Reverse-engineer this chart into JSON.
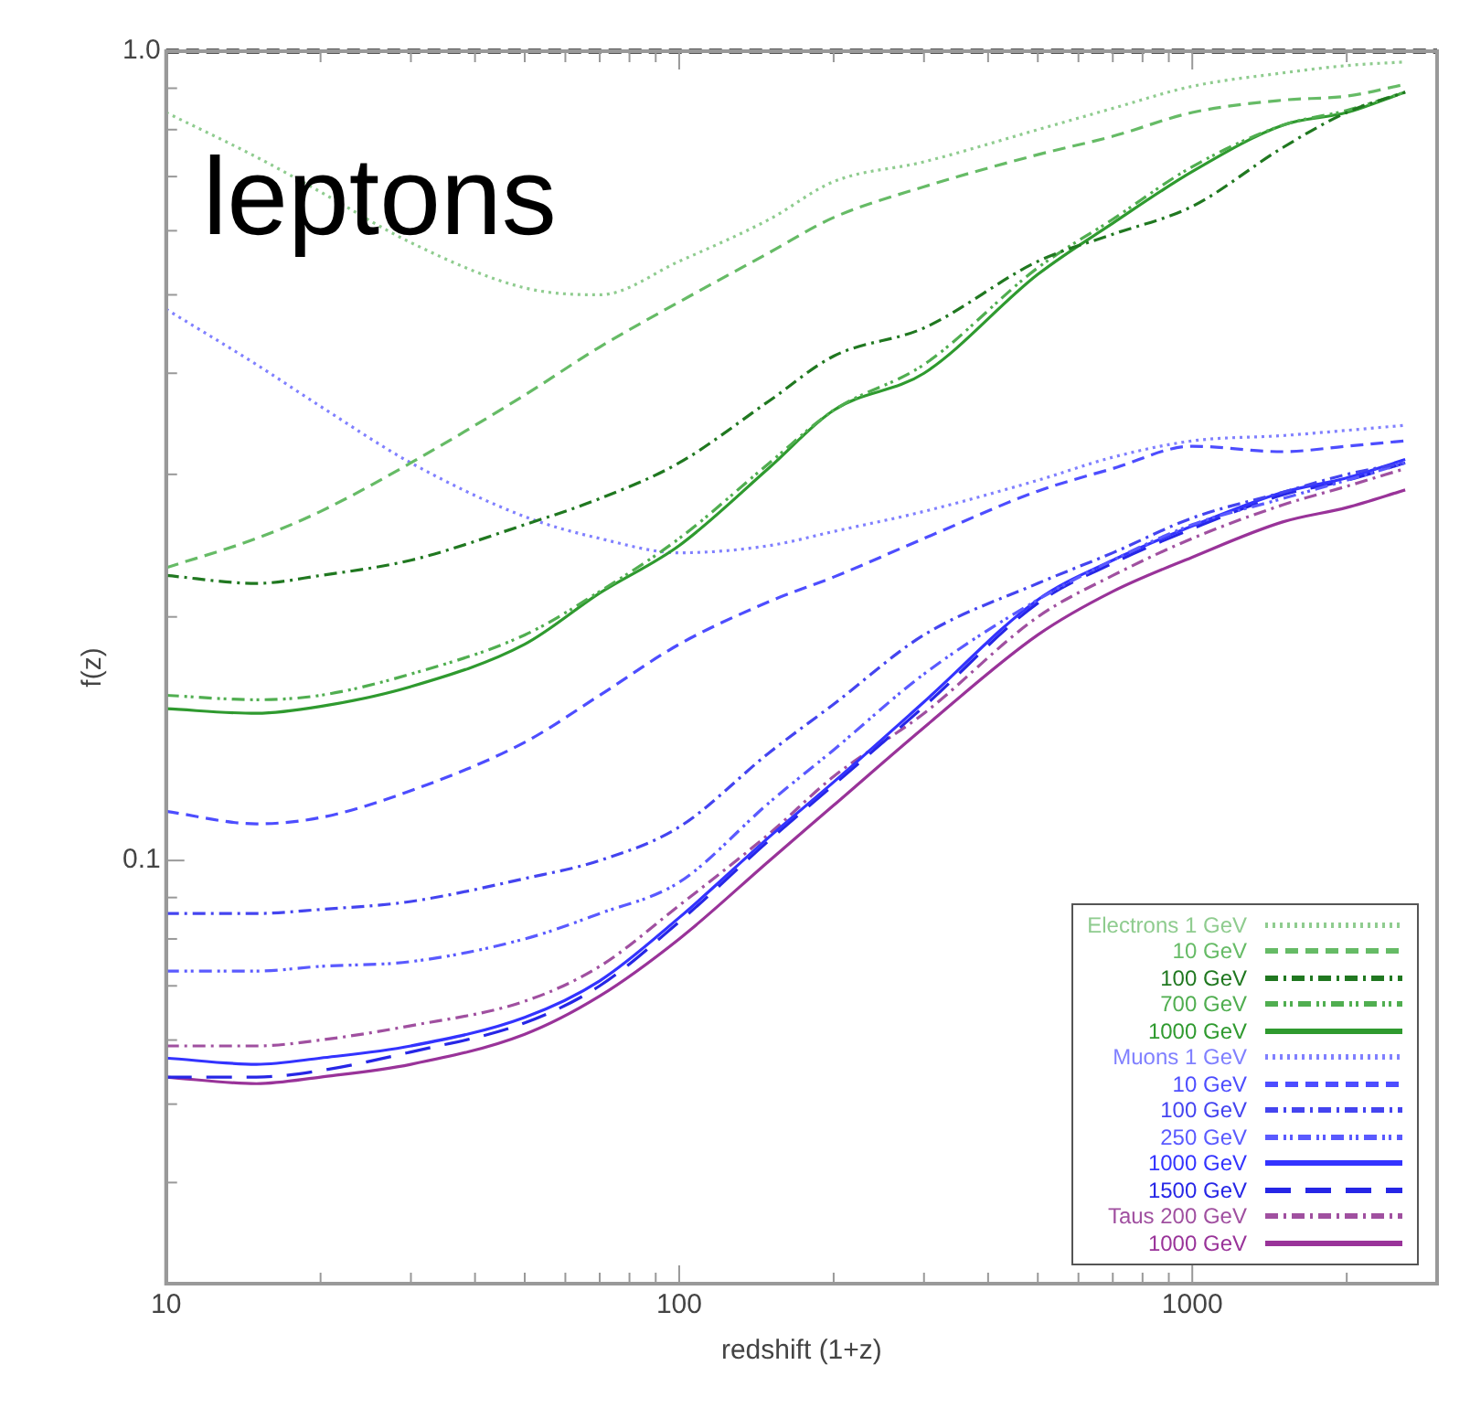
{
  "chart_data": {
    "type": "line",
    "title": "leptons",
    "xlabel": "redshift (1+z)",
    "ylabel": "f(z)",
    "log": "xy",
    "legend": "bottom right",
    "x": [
      10,
      15,
      20,
      30,
      50,
      70,
      100,
      150,
      200,
      300,
      500,
      700,
      1000,
      1500,
      2000,
      2600
    ],
    "xlim": [
      10,
      3000
    ],
    "xticks": [
      10,
      {
        "value": 20,
        "label": null
      },
      {
        "value": 30,
        "label": null
      },
      {
        "value": 40,
        "label": null
      },
      {
        "value": 50,
        "label": null
      },
      {
        "value": 60,
        "label": null
      },
      {
        "value": 70,
        "label": null
      },
      {
        "value": 80,
        "label": null
      },
      {
        "value": 90,
        "label": null
      },
      100,
      {
        "value": 200,
        "label": null
      },
      {
        "value": 300,
        "label": null
      },
      {
        "value": 400,
        "label": null
      },
      {
        "value": 500,
        "label": null
      },
      {
        "value": 600,
        "label": null
      },
      {
        "value": 700,
        "label": null
      },
      {
        "value": 800,
        "label": null
      },
      {
        "value": 900,
        "label": null
      },
      1000,
      {
        "value": 2000,
        "label": null
      },
      {
        "value": 3000,
        "label": null
      }
    ],
    "ylim": [
      0.03,
      1.0
    ],
    "yticks": [
      {
        "value": 0.03,
        "label": null
      },
      {
        "value": 0.04,
        "label": null
      },
      {
        "value": 0.05,
        "label": null
      },
      {
        "value": 0.06,
        "label": null
      },
      {
        "value": 0.07,
        "label": null
      },
      {
        "value": 0.08,
        "label": null
      },
      {
        "value": 0.09,
        "label": null
      },
      0.1,
      {
        "value": 0.2,
        "label": null
      },
      {
        "value": 0.3,
        "label": null
      },
      {
        "value": 0.4,
        "label": null
      },
      {
        "value": 0.5,
        "label": null
      },
      {
        "value": 0.6,
        "label": null
      },
      {
        "value": 0.7,
        "label": null
      },
      {
        "value": 0.8,
        "label": null
      },
      {
        "value": 0.9,
        "label": null
      },
      {
        "value": 1,
        "label": "1.0"
      }
    ],
    "ref_lines": [
      {
        "axis": "y",
        "value": 1,
        "color": "#555555",
        "line_style": "dashed"
      }
    ],
    "series": [
      {
        "name": "Electrons 1 GeV",
        "color": "#8fcc8f",
        "line_style": "dotted",
        "values": [
          0.84,
          0.74,
          0.67,
          0.58,
          0.51,
          0.5,
          0.55,
          0.62,
          0.69,
          0.73,
          0.8,
          0.85,
          0.905,
          0.94,
          0.96,
          0.97
        ]
      },
      {
        "name": "10 GeV",
        "color": "#66bb66",
        "line_style": "dashed",
        "values": [
          0.23,
          0.25,
          0.27,
          0.31,
          0.376,
          0.431,
          0.49,
          0.564,
          0.623,
          0.68,
          0.745,
          0.785,
          0.84,
          0.87,
          0.88,
          0.91
        ]
      },
      {
        "name": "100 GeV",
        "color": "#207820",
        "line_style": "dashdot",
        "values": [
          0.225,
          0.22,
          0.225,
          0.235,
          0.26,
          0.28,
          0.31,
          0.37,
          0.42,
          0.455,
          0.55,
          0.594,
          0.643,
          0.76,
          0.84,
          0.89
        ]
      },
      {
        "name": "700 GeV",
        "color": "#50ae50",
        "line_style": "dashdotdot",
        "values": [
          0.16,
          0.158,
          0.16,
          0.17,
          0.19,
          0.215,
          0.25,
          0.31,
          0.36,
          0.41,
          0.54,
          0.62,
          0.72,
          0.81,
          0.845,
          0.89
        ]
      },
      {
        "name": "1000 GeV",
        "color": "#2f9a2f",
        "line_style": "solid",
        "values": [
          0.154,
          0.152,
          0.155,
          0.164,
          0.185,
          0.214,
          0.245,
          0.306,
          0.36,
          0.4,
          0.53,
          0.613,
          0.71,
          0.81,
          0.84,
          0.89
        ]
      },
      {
        "name": "Muons 1 GeV",
        "color": "#8080ff",
        "line_style": "dotted",
        "values": [
          0.48,
          0.41,
          0.364,
          0.31,
          0.266,
          0.25,
          0.24,
          0.245,
          0.255,
          0.27,
          0.295,
          0.315,
          0.33,
          0.335,
          0.34,
          0.345
        ]
      },
      {
        "name": "10 GeV",
        "color": "#4d4dff",
        "line_style": "dashed",
        "values": [
          0.115,
          0.111,
          0.113,
          0.122,
          0.14,
          0.16,
          0.185,
          0.209,
          0.224,
          0.25,
          0.286,
          0.305,
          0.325,
          0.32,
          0.325,
          0.33
        ]
      },
      {
        "name": "100 GeV",
        "color": "#4444f0",
        "line_style": "dashdot",
        "values": [
          0.086,
          0.086,
          0.087,
          0.089,
          0.095,
          0.1,
          0.11,
          0.136,
          0.156,
          0.19,
          0.22,
          0.24,
          0.265,
          0.285,
          0.3,
          0.31
        ]
      },
      {
        "name": "250 GeV",
        "color": "#5a5aff",
        "line_style": "dashdotdot",
        "values": [
          0.073,
          0.073,
          0.074,
          0.075,
          0.08,
          0.086,
          0.094,
          0.118,
          0.137,
          0.17,
          0.21,
          0.235,
          0.26,
          0.28,
          0.295,
          0.31
        ]
      },
      {
        "name": "1000 GeV",
        "color": "#3333ff",
        "line_style": "solid",
        "values": [
          0.057,
          0.056,
          0.057,
          0.059,
          0.064,
          0.071,
          0.085,
          0.107,
          0.125,
          0.157,
          0.21,
          0.235,
          0.259,
          0.285,
          0.297,
          0.313
        ]
      },
      {
        "name": "1500 GeV",
        "color": "#2626e6",
        "line_style": "longdash",
        "values": [
          0.054,
          0.054,
          0.055,
          0.058,
          0.063,
          0.07,
          0.084,
          0.106,
          0.124,
          0.155,
          0.208,
          0.233,
          0.257,
          0.283,
          0.295,
          0.31
        ]
      },
      {
        "name": "Taus 200 GeV",
        "color": "#a050a0",
        "line_style": "dashdot",
        "values": [
          0.059,
          0.059,
          0.06,
          0.0625,
          0.067,
          0.074,
          0.088,
          0.108,
          0.127,
          0.152,
          0.2,
          0.225,
          0.25,
          0.275,
          0.29,
          0.305
        ]
      },
      {
        "name": "1000 GeV",
        "color": "#993399",
        "line_style": "solid",
        "values": [
          0.054,
          0.053,
          0.054,
          0.056,
          0.061,
          0.068,
          0.08,
          0.1,
          0.117,
          0.146,
          0.19,
          0.215,
          0.237,
          0.262,
          0.273,
          0.287
        ]
      }
    ]
  }
}
